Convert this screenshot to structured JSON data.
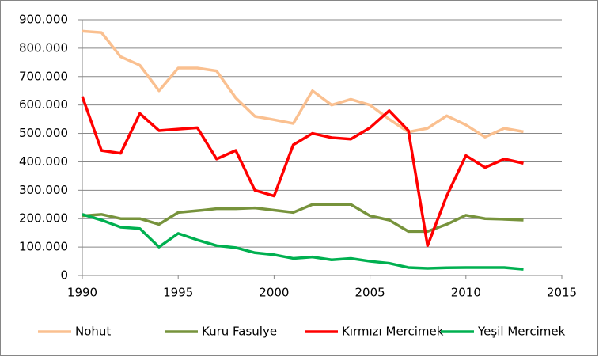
{
  "chart_data": {
    "type": "line",
    "x": [
      1990,
      1991,
      1992,
      1993,
      1994,
      1995,
      1996,
      1997,
      1998,
      1999,
      2000,
      2001,
      2002,
      2003,
      2004,
      2005,
      2006,
      2007,
      2008,
      2009,
      2010,
      2011,
      2012,
      2013
    ],
    "series": [
      {
        "name": "Nohut",
        "color": "#fac090",
        "values": [
          860000,
          855000,
          770000,
          740000,
          650000,
          730000,
          730000,
          720000,
          625000,
          560000,
          548000,
          535000,
          650000,
          600000,
          620000,
          600000,
          550000,
          505000,
          518000,
          562000,
          530000,
          487000,
          518000,
          506000
        ]
      },
      {
        "name": "Kuru Fasulye",
        "color": "#77933c",
        "values": [
          210000,
          215000,
          200000,
          200000,
          180000,
          222000,
          228000,
          235000,
          235000,
          238000,
          230000,
          222000,
          250000,
          250000,
          250000,
          210000,
          195000,
          155000,
          155000,
          180000,
          212000,
          200000,
          198000,
          195000
        ]
      },
      {
        "name": "Kırmızı Mercimek",
        "color": "#ff0000",
        "values": [
          630000,
          440000,
          430000,
          570000,
          510000,
          515000,
          520000,
          410000,
          440000,
          300000,
          280000,
          460000,
          500000,
          485000,
          480000,
          520000,
          580000,
          510000,
          105000,
          280000,
          422000,
          380000,
          410000,
          395000
        ]
      },
      {
        "name": "Yeşil Mercimek",
        "color": "#00b050",
        "values": [
          215000,
          195000,
          170000,
          165000,
          100000,
          148000,
          125000,
          105000,
          98000,
          80000,
          73000,
          60000,
          65000,
          55000,
          60000,
          50000,
          43000,
          28000,
          25000,
          27000,
          28000,
          28000,
          28000,
          22000
        ]
      }
    ],
    "xlim": [
      1990,
      2015
    ],
    "xticks": [
      1990,
      1995,
      2000,
      2005,
      2010,
      2015
    ],
    "ylim": [
      0,
      900000
    ],
    "yticks": [
      0,
      {
        "value": 100000,
        "label": "100.000"
      },
      {
        "value": 200000,
        "label": "200.000"
      },
      {
        "value": 300000,
        "label": "300.000"
      },
      {
        "value": 400000,
        "label": "400.000"
      },
      {
        "value": 500000,
        "label": "500.000"
      },
      {
        "value": 600000,
        "label": "600.000"
      },
      {
        "value": 700000,
        "label": "700.000"
      },
      {
        "value": 800000,
        "label": "800.000"
      },
      {
        "value": 900000,
        "label": "900.000"
      }
    ],
    "grid": true,
    "legend": "bottom"
  }
}
